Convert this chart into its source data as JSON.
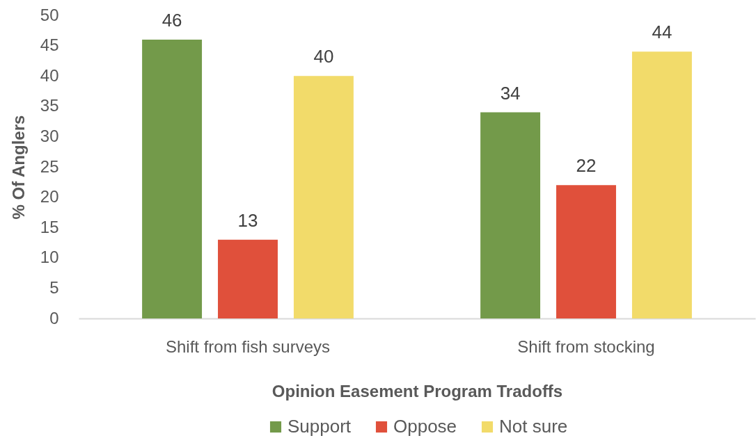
{
  "chart_data": {
    "type": "bar",
    "xlabel": "Opinion Easement Program Tradoffs",
    "ylabel": "% Of Anglers",
    "categories": [
      "Shift from fish surveys",
      "Shift from stocking"
    ],
    "series": [
      {
        "name": "Support",
        "color": "#739a4a",
        "values": [
          46,
          34
        ]
      },
      {
        "name": "Oppose",
        "color": "#e0503b",
        "values": [
          13,
          22
        ]
      },
      {
        "name": "Not sure",
        "color": "#f2db6a",
        "values": [
          40,
          44
        ]
      }
    ],
    "ylim": [
      0,
      50
    ],
    "yticks": [
      0,
      5,
      10,
      15,
      20,
      25,
      30,
      35,
      40,
      45,
      50
    ],
    "legend": "bottom",
    "data_labels": true
  }
}
